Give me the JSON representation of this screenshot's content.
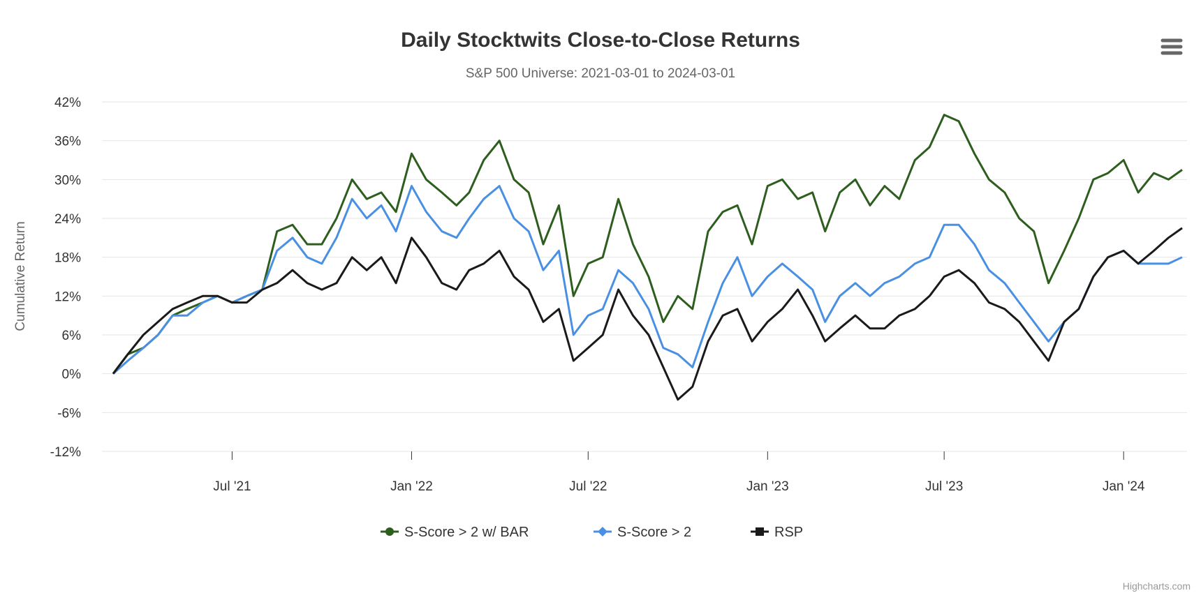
{
  "chart_data": {
    "type": "line",
    "title": "Daily Stocktwits Close-to-Close Returns",
    "subtitle": "S&P 500 Universe: 2021-03-01 to 2024-03-01",
    "xlabel": "",
    "ylabel": "Cumulative Return",
    "x_start": "2021-03-01",
    "x_end": "2024-03-01",
    "x_interval": "semi-monthly",
    "x_ticks": [
      {
        "date": "2021-07-01",
        "label": "Jul '21"
      },
      {
        "date": "2022-01-01",
        "label": "Jan '22"
      },
      {
        "date": "2022-07-01",
        "label": "Jul '22"
      },
      {
        "date": "2023-01-01",
        "label": "Jan '23"
      },
      {
        "date": "2023-07-01",
        "label": "Jul '23"
      },
      {
        "date": "2024-01-01",
        "label": "Jan '24"
      }
    ],
    "y_ticks": [
      42,
      36,
      30,
      24,
      18,
      12,
      6,
      0,
      -6,
      -12
    ],
    "y_tick_labels": [
      "42%",
      "36%",
      "30%",
      "24%",
      "18%",
      "12%",
      "6%",
      "0%",
      "-6%",
      "-12%"
    ],
    "ylim": [
      -12,
      42
    ],
    "grid": true,
    "legend_position": "bottom-center",
    "series": [
      {
        "name": "S-Score > 2 w/ BAR",
        "color": "#2d5e1e",
        "marker": "circle",
        "values": [
          0,
          3,
          4,
          6,
          9,
          10,
          11,
          12,
          11,
          12,
          13,
          22,
          23,
          20,
          20,
          24,
          30,
          27,
          28,
          25,
          34,
          30,
          28,
          26,
          28,
          33,
          36,
          30,
          28,
          20,
          26,
          12,
          17,
          18,
          27,
          20,
          15,
          8,
          12,
          10,
          22,
          25,
          26,
          20,
          29,
          30,
          27,
          28,
          22,
          28,
          30,
          26,
          29,
          27,
          33,
          35,
          40,
          39,
          34,
          30,
          28,
          24,
          22,
          14,
          19,
          24,
          30,
          31,
          33,
          28,
          31,
          30,
          31.5
        ]
      },
      {
        "name": "S-Score > 2",
        "color": "#4a90e2",
        "marker": "diamond",
        "values": [
          0,
          2,
          4,
          6,
          9,
          9,
          11,
          12,
          11,
          12,
          13,
          19,
          21,
          18,
          17,
          21,
          27,
          24,
          26,
          22,
          29,
          25,
          22,
          21,
          24,
          27,
          29,
          24,
          22,
          16,
          19,
          6,
          9,
          10,
          16,
          14,
          10,
          4,
          3,
          1,
          8,
          14,
          18,
          12,
          15,
          17,
          15,
          13,
          8,
          12,
          14,
          12,
          14,
          15,
          17,
          18,
          23,
          23,
          20,
          16,
          14,
          11,
          8,
          5,
          8,
          10,
          15,
          18,
          19,
          17,
          17,
          17,
          18
        ]
      },
      {
        "name": "RSP",
        "color": "#1a1a1a",
        "marker": "square",
        "values": [
          0,
          3,
          6,
          8,
          10,
          11,
          12,
          12,
          11,
          11,
          13,
          14,
          16,
          14,
          13,
          14,
          18,
          16,
          18,
          14,
          21,
          18,
          14,
          13,
          16,
          17,
          19,
          15,
          13,
          8,
          10,
          2,
          4,
          6,
          13,
          9,
          6,
          1,
          -4,
          -2,
          5,
          9,
          10,
          5,
          8,
          10,
          13,
          9,
          5,
          7,
          9,
          7,
          7,
          9,
          10,
          12,
          15,
          16,
          14,
          11,
          10,
          8,
          5,
          2,
          8,
          10,
          15,
          18,
          19,
          17,
          19,
          21,
          22.5
        ]
      }
    ]
  },
  "menu_icon": "hamburger-menu-icon",
  "credits": "Highcharts.com"
}
